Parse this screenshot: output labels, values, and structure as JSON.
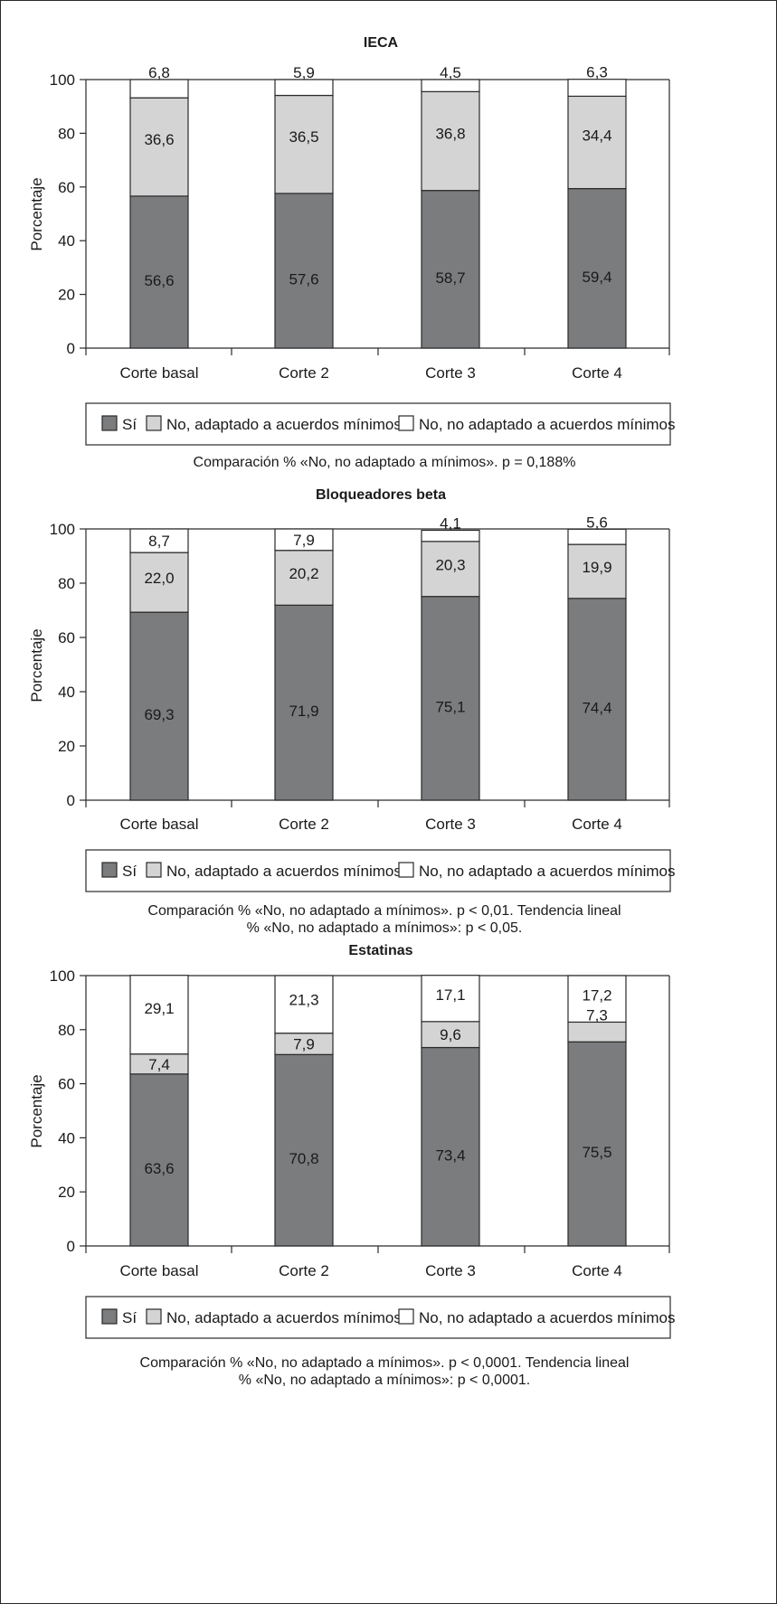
{
  "colors": {
    "si": "#7b7c7e",
    "adaptado": "#d4d4d4",
    "no_adaptado": "#ffffff",
    "stroke": "#2a2a2a"
  },
  "chart_data": [
    {
      "type": "bar",
      "stacked": true,
      "title": "IECA",
      "ylabel": "Porcentaje",
      "ylim": [
        0,
        100
      ],
      "yticks": [
        "0",
        "20",
        "40",
        "60",
        "80",
        "100"
      ],
      "categories": [
        "Corte basal",
        "Corte 2",
        "Corte 3",
        "Corte 4"
      ],
      "series": [
        {
          "name": "Sí",
          "values": [
            56.6,
            57.6,
            58.7,
            59.4
          ],
          "labels": [
            "56,6",
            "57,6",
            "58,7",
            "59,4"
          ]
        },
        {
          "name": "No, adaptado a acuerdos mínimos",
          "values": [
            36.6,
            36.5,
            36.8,
            34.4
          ],
          "labels": [
            "36,6",
            "36,5",
            "36,8",
            "34,4"
          ]
        },
        {
          "name": "No, no adaptado a acuerdos mínimos",
          "values": [
            6.8,
            5.9,
            4.5,
            6.3
          ],
          "labels": [
            "6,8",
            "5,9",
            "4,5",
            "6,3"
          ]
        }
      ],
      "legend_position": "bottom",
      "note": [
        "Comparación % «No, no adaptado a mínimos». p = 0,188%"
      ]
    },
    {
      "type": "bar",
      "stacked": true,
      "title": "Bloqueadores beta",
      "ylabel": "Porcentaje",
      "ylim": [
        0,
        100
      ],
      "yticks": [
        "0",
        "20",
        "40",
        "60",
        "80",
        "100"
      ],
      "categories": [
        "Corte basal",
        "Corte 2",
        "Corte 3",
        "Corte 4"
      ],
      "series": [
        {
          "name": "Sí",
          "values": [
            69.3,
            71.9,
            75.1,
            74.4
          ],
          "labels": [
            "69,3",
            "71,9",
            "75,1",
            "74,4"
          ]
        },
        {
          "name": "No, adaptado a acuerdos mínimos",
          "values": [
            22.0,
            20.2,
            20.3,
            19.9
          ],
          "labels": [
            "22,0",
            "20,2",
            "20,3",
            "19,9"
          ]
        },
        {
          "name": "No, no adaptado a acuerdos mínimos",
          "values": [
            8.7,
            7.9,
            4.1,
            5.6
          ],
          "labels": [
            "8,7",
            "7,9",
            "4,1",
            "5,6"
          ]
        }
      ],
      "legend_position": "bottom",
      "note": [
        "Comparación % «No, no adaptado a mínimos». p < 0,01. Tendencia lineal",
        "% «No, no adaptado a mínimos»: p < 0,05."
      ]
    },
    {
      "type": "bar",
      "stacked": true,
      "title": "Estatinas",
      "ylabel": "Porcentaje",
      "ylim": [
        0,
        100
      ],
      "yticks": [
        "0",
        "20",
        "40",
        "60",
        "80",
        "100"
      ],
      "categories": [
        "Corte basal",
        "Corte 2",
        "Corte 3",
        "Corte 4"
      ],
      "series": [
        {
          "name": "Sí",
          "values": [
            63.6,
            70.8,
            73.4,
            75.5
          ],
          "labels": [
            "63,6",
            "70,8",
            "73,4",
            "75,5"
          ]
        },
        {
          "name": "No, adaptado a acuerdos mínimos",
          "values": [
            7.4,
            7.9,
            9.6,
            7.3
          ],
          "labels": [
            "7,4",
            "7,9",
            "9,6",
            "7,3"
          ]
        },
        {
          "name": "No, no adaptado a acuerdos mínimos",
          "values": [
            29.1,
            21.3,
            17.1,
            17.2
          ],
          "labels": [
            "29,1",
            "21,3",
            "17,1",
            "17,2"
          ]
        }
      ],
      "legend_position": "bottom",
      "note": [
        "Comparación % «No, no adaptado a mínimos». p < 0,0001. Tendencia lineal",
        "% «No, no adaptado a mínimos»: p < 0,0001."
      ]
    }
  ]
}
